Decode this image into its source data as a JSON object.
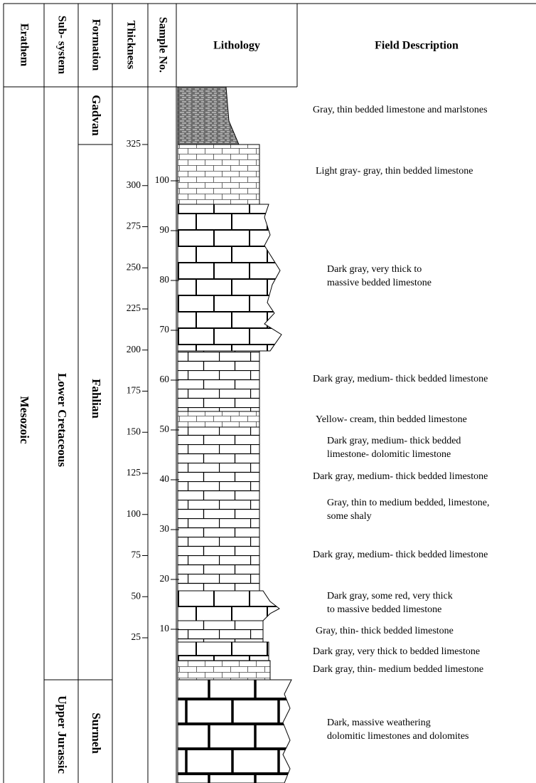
{
  "headers": {
    "erathem": "Erathem",
    "subsystem": "Sub- system",
    "formation": "Formation",
    "thickness": "Thickness",
    "sample": "Sample No.",
    "lithology": "Lithology",
    "description": "Field Description"
  },
  "erathem": "Mesozoic",
  "subsystems": [
    "Lower Cretaceous",
    "Upper Jurassic"
  ],
  "formations": [
    "Gadvan",
    "Fahlian",
    "Surmeh"
  ],
  "thickness_ticks": [
    325,
    300,
    275,
    250,
    225,
    200,
    175,
    150,
    125,
    100,
    75,
    50,
    25
  ],
  "sample_ticks": [
    100,
    90,
    80,
    70,
    60,
    50,
    40,
    30,
    20,
    10
  ],
  "descriptions": [
    [
      "Gray, thin bedded limestone and marlstones"
    ],
    [
      "Light gray- gray, thin bedded limestone"
    ],
    [
      "Dark gray, very thick to",
      "massive bedded limestone"
    ],
    [
      "Dark gray, medium- thick bedded limestone"
    ],
    [
      "Yellow- cream, thin bedded limestone"
    ],
    [
      "Dark gray, medium- thick bedded",
      "limestone- dolomitic limestone"
    ],
    [
      "Dark gray, medium- thick bedded limestone"
    ],
    [
      "Gray, thin to medium bedded, limestone,",
      "some shaly"
    ],
    [
      "Dark gray, medium- thick bedded limestone"
    ],
    [
      "Dark gray, some red, very thick",
      "to massive bedded limestone"
    ],
    [
      "Gray, thin- thick bedded limestone"
    ],
    [
      "Dark gray, very thick to bedded limestone"
    ],
    [
      "Dark gray, thin- medium bedded limestone"
    ],
    [
      "Dark, massive weathering",
      "dolomitic limestones and dolomites"
    ]
  ]
}
